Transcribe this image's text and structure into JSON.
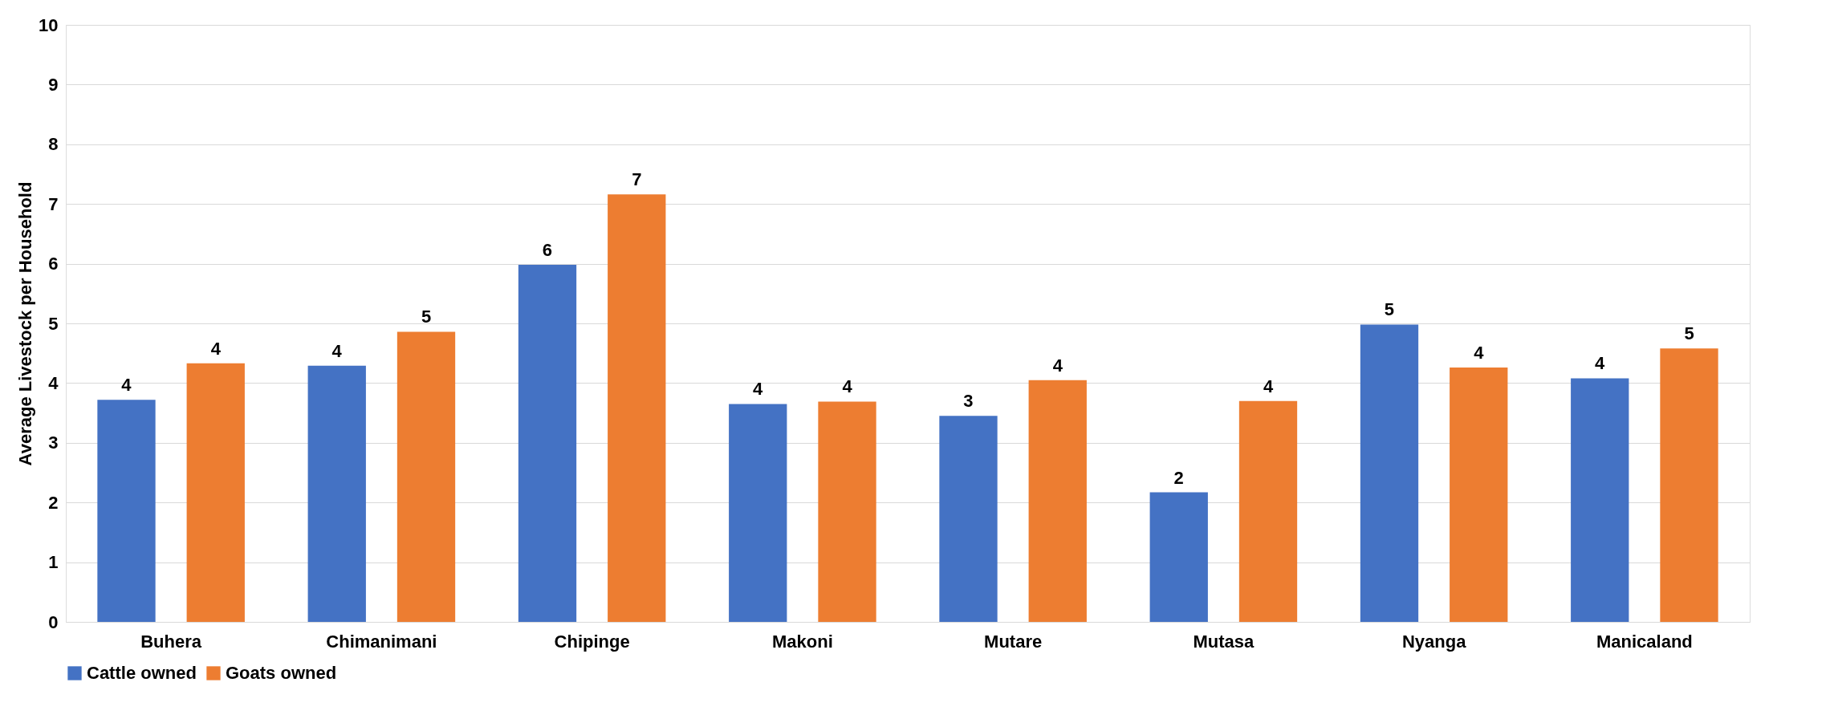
{
  "chart_data": {
    "type": "bar",
    "ylabel": "Average Livestock per Household",
    "categories": [
      "Buhera",
      "Chimanimani",
      "Chipinge",
      "Makoni",
      "Mutare",
      "Mutasa",
      "Nyanga",
      "Manicaland"
    ],
    "series": [
      {
        "name": "Cattle owned",
        "color": "#4472c4",
        "values": [
          3.72,
          4.29,
          5.98,
          3.65,
          3.45,
          2.17,
          4.98,
          4.08
        ],
        "value_labels": [
          "4",
          "4",
          "6",
          "4",
          "3",
          "2",
          "5",
          "4"
        ]
      },
      {
        "name": "Goats owned",
        "color": "#ed7d31",
        "values": [
          4.33,
          4.86,
          7.16,
          3.69,
          4.05,
          3.7,
          4.26,
          4.58
        ],
        "value_labels": [
          "4",
          "5",
          "7",
          "4",
          "4",
          "4",
          "4",
          "5"
        ]
      }
    ],
    "ylim": [
      0,
      10
    ],
    "yticks": [
      0,
      1,
      2,
      3,
      4,
      5,
      6,
      7,
      8,
      9,
      10
    ],
    "grid": "y",
    "legend": "bottom"
  }
}
